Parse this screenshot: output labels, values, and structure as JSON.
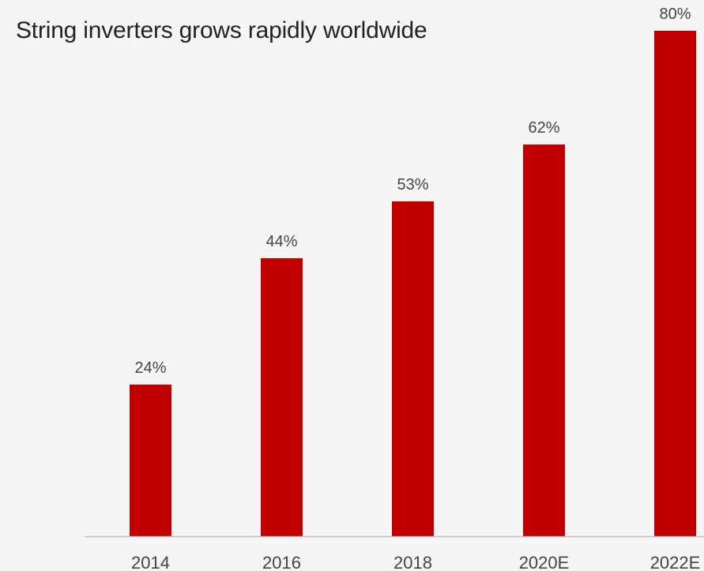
{
  "chart_data": {
    "type": "bar",
    "title": "String inverters grows rapidly worldwide",
    "categories": [
      "2014",
      "2016",
      "2018",
      "2020E",
      "2022E"
    ],
    "values": [
      24,
      44,
      53,
      62,
      80
    ],
    "value_labels": [
      "24%",
      "44%",
      "53%",
      "62%",
      "80%"
    ],
    "unit": "%",
    "xlabel": "",
    "ylabel": "",
    "ylim": [
      0,
      80
    ],
    "grid": false,
    "legend": "none",
    "colors": {
      "bar": "#c00000",
      "background": "#f5f5f5",
      "axis": "#bfbfbf",
      "text": "#444444",
      "title": "#222222"
    }
  }
}
